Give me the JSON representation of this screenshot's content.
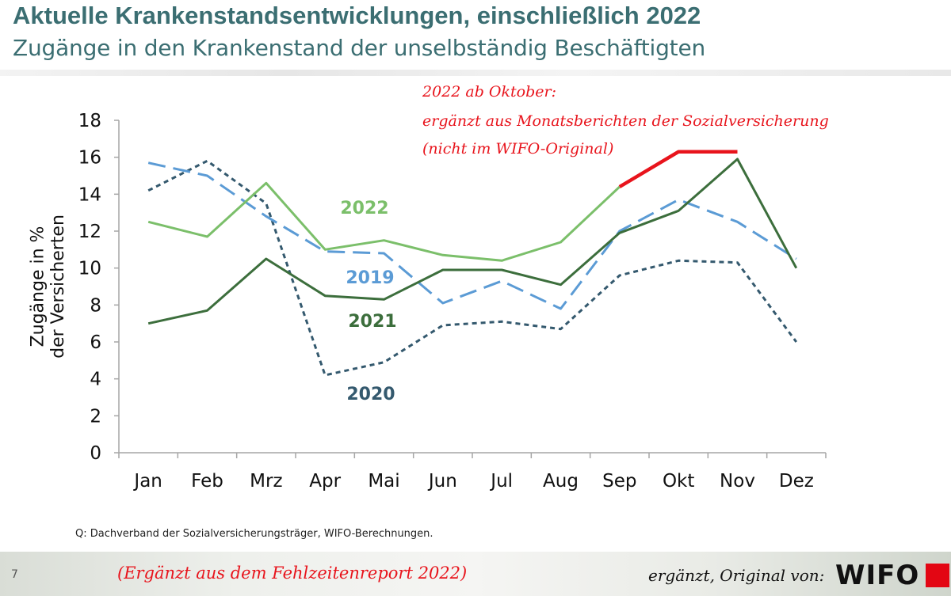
{
  "header": {
    "title": "Aktuelle Krankenstandsentwicklungen, einschließlich 2022",
    "subtitle": "Zugänge in den Krankenstand der unselbständig Beschäftigten"
  },
  "chart_data": {
    "type": "line",
    "categories": [
      "Jan",
      "Feb",
      "Mrz",
      "Apr",
      "Mai",
      "Jun",
      "Jul",
      "Aug",
      "Sep",
      "Okt",
      "Nov",
      "Dez"
    ],
    "ylabel": "Zugänge in % der Versicherten",
    "ylim": [
      0,
      18
    ],
    "yticks": [
      "0",
      "2",
      "4",
      "6",
      "8",
      "10",
      "12",
      "14",
      "16",
      "18"
    ],
    "series": [
      {
        "name": "2019",
        "color": "#5b9bd5",
        "style": "longdash",
        "values": [
          15.7,
          15.0,
          12.8,
          10.9,
          10.8,
          8.1,
          9.3,
          7.8,
          12.0,
          13.7,
          12.5,
          10.5
        ]
      },
      {
        "name": "2020",
        "color": "#34596e",
        "style": "dotted",
        "values": [
          14.2,
          15.8,
          13.5,
          4.2,
          4.9,
          6.9,
          7.1,
          6.7,
          9.6,
          10.4,
          10.3,
          6.0
        ]
      },
      {
        "name": "2021",
        "color": "#3c6e3c",
        "style": "solid",
        "values": [
          7.0,
          7.7,
          10.5,
          8.5,
          8.3,
          9.9,
          9.9,
          9.1,
          11.9,
          13.1,
          15.9,
          10.0
        ]
      },
      {
        "name": "2022",
        "color": "#7bbf6a",
        "style": "solid",
        "values": [
          12.5,
          11.7,
          14.6,
          11.0,
          11.5,
          10.7,
          10.4,
          11.4,
          14.4,
          null,
          null,
          null
        ]
      }
    ],
    "extension": {
      "color": "#e8141c",
      "from_index": 8,
      "values": [
        14.4,
        16.3,
        16.3
      ]
    },
    "annotation": [
      "2022 ab Oktober:",
      "ergänzt aus Monatsberichten der Sozialversicherung",
      "(nicht im WIFO-Original)"
    ]
  },
  "source": "Q: Dachverband der Sozialversicherungsträger, WIFO-Berechnungen.",
  "footer": {
    "page_number": "7",
    "left_note": "(Ergänzt aus dem Fehlzeitenreport 2022)",
    "right_note": "ergänzt, Original von:",
    "logo_text": "WIFO"
  }
}
